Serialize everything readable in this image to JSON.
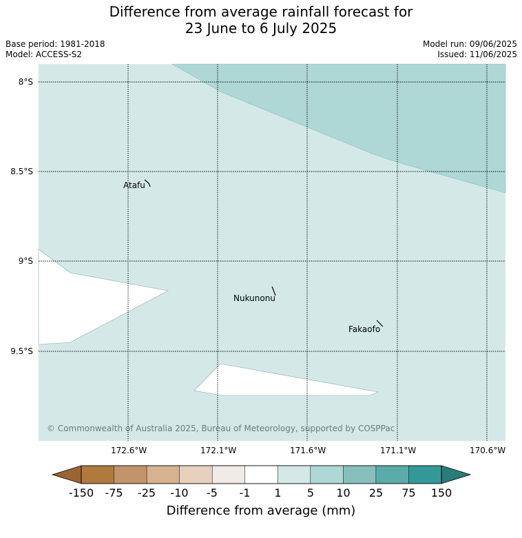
{
  "title": {
    "line1": "Difference from average rainfall forecast for",
    "line2": "23 June to 6 July 2025"
  },
  "meta": {
    "base_period": "Base period: 1981-2018",
    "model": "Model: ACCESS-S2",
    "model_run": "Model run: 09/06/2025",
    "issued": "Issued: 11/06/2025"
  },
  "map": {
    "latitude_labels": [
      "8°S",
      "8.5°S",
      "9°S",
      "9.5°S"
    ],
    "longitude_labels": [
      "172.6°W",
      "172.1°W",
      "171.6°W",
      "171.1°W",
      "170.6°W"
    ],
    "places": [
      "Atafu",
      "Nukunonu",
      "Fakaofo"
    ],
    "copyright": "© Commonwealth of Australia 2025, Bureau of Meteorology, supported by COSPPac",
    "colors": {
      "main_fill": "#d4e9e7",
      "upper_fill": "#aed7d5",
      "white_fill": "#ffffff"
    }
  },
  "colorbar": {
    "ticks": [
      "-150",
      "-75",
      "-25",
      "-10",
      "-5",
      "-1",
      "1",
      "5",
      "10",
      "25",
      "75",
      "150"
    ],
    "colors": [
      "#9b6532",
      "#b07a3e",
      "#c3946b",
      "#d6b291",
      "#e7d0bd",
      "#f1ebe7",
      "#ffffff",
      "#d4e9e7",
      "#aed7d5",
      "#87bfbd",
      "#5aacab",
      "#339997",
      "#2a7c7b"
    ],
    "label": "Difference from average (mm)"
  }
}
